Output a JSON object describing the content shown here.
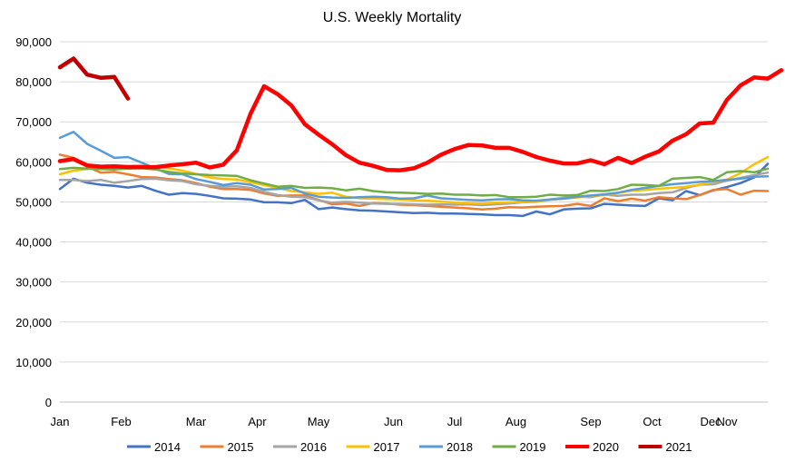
{
  "chart_data": {
    "type": "line",
    "title": "U.S. Weekly Mortality",
    "xlabel": "",
    "ylabel": "",
    "ylim": [
      0,
      90000
    ],
    "yticks": [
      0,
      10000,
      20000,
      30000,
      40000,
      50000,
      60000,
      70000,
      80000,
      90000
    ],
    "ytick_labels": [
      "0",
      "10,000",
      "20,000",
      "30,000",
      "40,000",
      "50,000",
      "60,000",
      "70,000",
      "80,000",
      "90,000"
    ],
    "x_unit": "week of year",
    "xlim": [
      1,
      53
    ],
    "month_labels": [
      {
        "label": "Jan",
        "week": 1
      },
      {
        "label": "Feb",
        "week": 5.5
      },
      {
        "label": "Mar",
        "week": 11
      },
      {
        "label": "Apr",
        "week": 15.5
      },
      {
        "label": "May",
        "week": 20
      },
      {
        "label": "Jun",
        "week": 25.5
      },
      {
        "label": "Jul",
        "week": 30
      },
      {
        "label": "Aug",
        "week": 34.5
      },
      {
        "label": "Sep",
        "week": 40
      },
      {
        "label": "Oct",
        "week": 44.5
      },
      {
        "label": "Nov",
        "week": 50
      },
      {
        "label": "Dec",
        "week": 54
      }
    ],
    "grid": "horizontal",
    "legend_position": "bottom",
    "series": [
      {
        "name": "2014",
        "color": "#4472C4",
        "width": 2.5,
        "values": [
          53200,
          55800,
          54800,
          54300,
          54000,
          53600,
          54000,
          52800,
          51800,
          52200,
          52000,
          51500,
          50900,
          50800,
          50600,
          49900,
          49900,
          49700,
          50500,
          48200,
          48600,
          48200,
          47900,
          47800,
          47600,
          47400,
          47200,
          47300,
          47100,
          47100,
          47000,
          46900,
          46700,
          46700,
          46500,
          47600,
          46900,
          48100,
          48300,
          48400,
          49500,
          49300,
          49100,
          49000,
          50900,
          50400,
          52700,
          51700,
          52900,
          53700,
          54700,
          56100,
          59500
        ]
      },
      {
        "name": "2015",
        "color": "#ED7D31",
        "width": 2.5,
        "values": [
          61800,
          61000,
          58800,
          57300,
          57500,
          56900,
          56200,
          56100,
          55700,
          55400,
          54700,
          53800,
          53200,
          53200,
          53000,
          52100,
          51500,
          51600,
          51600,
          50500,
          49400,
          49600,
          49000,
          49700,
          49600,
          49300,
          49200,
          49000,
          48800,
          48600,
          48400,
          48100,
          48300,
          48700,
          48600,
          48800,
          48900,
          49000,
          49500,
          49000,
          50900,
          50200,
          50800,
          50300,
          51200,
          50900,
          50700,
          51700,
          53000,
          53200,
          51800,
          52800,
          52700
        ]
      },
      {
        "name": "2016",
        "color": "#A5A5A5",
        "width": 2.5,
        "values": [
          55500,
          55500,
          55200,
          55500,
          54800,
          55200,
          55700,
          55800,
          55400,
          55200,
          54400,
          54000,
          53800,
          53900,
          53500,
          52500,
          51700,
          51300,
          51200,
          50400,
          49800,
          50000,
          49800,
          49600,
          49500,
          49500,
          49400,
          49300,
          49400,
          49300,
          49400,
          49200,
          49400,
          49600,
          49900,
          50000,
          50600,
          51000,
          51300,
          51200,
          51800,
          51500,
          51800,
          51800,
          52200,
          52400,
          53500,
          54300,
          54400,
          55300,
          56000,
          56700,
          57300
        ]
      },
      {
        "name": "2017",
        "color": "#FFC000",
        "width": 2.5,
        "values": [
          56900,
          57800,
          58200,
          58400,
          58700,
          59000,
          59100,
          58600,
          58400,
          57800,
          57000,
          56100,
          55700,
          55600,
          54900,
          54200,
          53500,
          52700,
          52400,
          52000,
          52300,
          51300,
          50900,
          50800,
          50700,
          50600,
          50400,
          50300,
          50100,
          49800,
          49700,
          49600,
          49800,
          49900,
          50000,
          50100,
          50500,
          50800,
          51100,
          51500,
          51700,
          52200,
          52800,
          53000,
          53300,
          53500,
          53800,
          54300,
          55000,
          55600,
          57200,
          59400,
          61200
        ]
      },
      {
        "name": "2018",
        "color": "#5B9BD5",
        "width": 2.5,
        "values": [
          66000,
          67500,
          64500,
          62800,
          61000,
          61200,
          59800,
          58400,
          57000,
          56900,
          55700,
          55000,
          54200,
          54700,
          54300,
          53100,
          53200,
          53500,
          52100,
          51300,
          51100,
          51000,
          51200,
          51300,
          51200,
          50800,
          50900,
          51600,
          50900,
          50700,
          50500,
          50400,
          50600,
          50700,
          50400,
          50300,
          50600,
          50800,
          51300,
          51600,
          51900,
          52300,
          53000,
          53500,
          54000,
          54400,
          54700,
          55000,
          55200,
          55500,
          55800,
          56300,
          56400
        ]
      },
      {
        "name": "2019",
        "color": "#70AD47",
        "width": 2.5,
        "values": [
          58200,
          58500,
          58300,
          58200,
          58100,
          58300,
          58400,
          58100,
          57500,
          57100,
          56900,
          56700,
          56600,
          56500,
          55400,
          54600,
          53800,
          54000,
          53500,
          53600,
          53400,
          52900,
          53300,
          52700,
          52400,
          52300,
          52200,
          52000,
          52100,
          51800,
          51800,
          51600,
          51700,
          51200,
          51200,
          51300,
          51800,
          51600,
          51700,
          52800,
          52700,
          53200,
          54300,
          54200,
          54000,
          55800,
          56000,
          56200,
          55500,
          57400,
          57700,
          57400,
          58300
        ]
      },
      {
        "name": "2020",
        "color": "#FF0000",
        "width": 4.5,
        "values": [
          60200,
          60700,
          59100,
          58800,
          58900,
          58700,
          58700,
          58700,
          59100,
          59400,
          59800,
          58600,
          59300,
          62900,
          72000,
          78900,
          76900,
          74100,
          69400,
          66800,
          64400,
          61700,
          59800,
          59000,
          58000,
          57900,
          58400,
          59800,
          61800,
          63200,
          64200,
          64100,
          63500,
          63500,
          62500,
          61200,
          60300,
          59600,
          59600,
          60400,
          59400,
          61000,
          59700,
          61300,
          62600,
          65300,
          66900,
          69600,
          69800,
          75500,
          79100,
          81100,
          80800,
          82900
        ]
      },
      {
        "name": "2021",
        "color": "#C00000",
        "width": 4.5,
        "values": [
          83600,
          85800,
          81800,
          81000,
          81200,
          75800
        ]
      }
    ]
  }
}
